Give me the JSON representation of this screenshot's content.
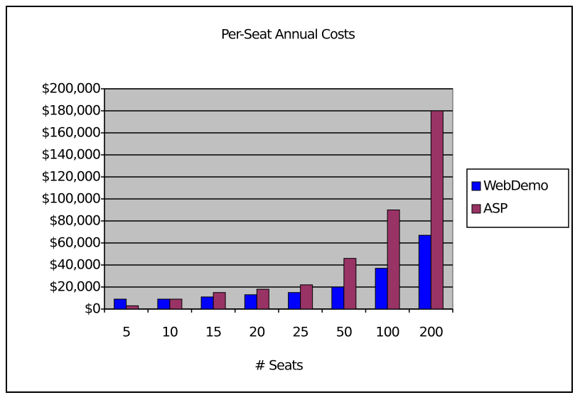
{
  "chart_data": {
    "type": "bar",
    "title": "Per-Seat Annual Costs",
    "x_label": "# Seats",
    "categories": [
      "5",
      "10",
      "15",
      "20",
      "25",
      "50",
      "100",
      "200"
    ],
    "series": [
      {
        "name": "WebDemo",
        "color": "#0000ff",
        "values": [
          9000,
          9000,
          11000,
          13000,
          15000,
          20000,
          37000,
          67000
        ]
      },
      {
        "name": "ASP",
        "color": "#993366",
        "values": [
          3000,
          9000,
          15000,
          18000,
          22000,
          46000,
          90000,
          180000
        ]
      }
    ],
    "ylim": [
      0,
      200000
    ],
    "yticks": [
      {
        "value": 0,
        "label": "$0"
      },
      {
        "value": 20000,
        "label": "$20,000"
      },
      {
        "value": 40000,
        "label": "$40,000"
      },
      {
        "value": 60000,
        "label": "$60,000"
      },
      {
        "value": 80000,
        "label": "$80,000"
      },
      {
        "value": 100000,
        "label": "$100,000"
      },
      {
        "value": 120000,
        "label": "$120,000"
      },
      {
        "value": 140000,
        "label": "$140,000"
      },
      {
        "value": 160000,
        "label": "$160,000"
      },
      {
        "value": 180000,
        "label": "$180,000"
      },
      {
        "value": 200000,
        "label": "$200,000"
      }
    ],
    "grid": true,
    "plot_background": "#c0c0c0",
    "legend": "right"
  }
}
